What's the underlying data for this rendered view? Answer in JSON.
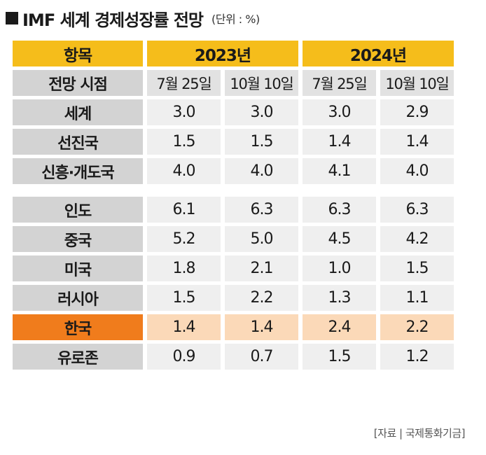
{
  "title": "IMF 세계 경제성장률 전망",
  "unit": "(단위 : %)",
  "header": {
    "item_label": "항목",
    "years": [
      "2023년",
      "2024년"
    ]
  },
  "subheader": {
    "label": "전망 시점",
    "dates": [
      "7월 25일",
      "10월 10일",
      "7월 25일",
      "10월 10일"
    ]
  },
  "rows": [
    {
      "label": "세계",
      "values": [
        "3.0",
        "3.0",
        "3.0",
        "2.9"
      ]
    },
    {
      "label": "선진국",
      "values": [
        "1.5",
        "1.5",
        "1.4",
        "1.4"
      ]
    },
    {
      "label": "신흥·개도국",
      "values": [
        "4.0",
        "4.0",
        "4.1",
        "4.0"
      ]
    },
    {
      "label": "인도",
      "values": [
        "6.1",
        "6.3",
        "6.3",
        "6.3"
      ]
    },
    {
      "label": "중국",
      "values": [
        "5.2",
        "5.0",
        "4.5",
        "4.2"
      ]
    },
    {
      "label": "미국",
      "values": [
        "1.8",
        "2.1",
        "1.0",
        "1.5"
      ]
    },
    {
      "label": "러시아",
      "values": [
        "1.5",
        "2.2",
        "1.3",
        "1.1"
      ]
    },
    {
      "label": "한국",
      "values": [
        "1.4",
        "1.4",
        "2.4",
        "2.2"
      ]
    },
    {
      "label": "유로존",
      "values": [
        "0.9",
        "0.7",
        "1.5",
        "1.2"
      ]
    }
  ],
  "colors": {
    "header": "#f5bd1b",
    "highlight_label": "#f07c1c",
    "highlight_value": "#fbd9b8",
    "label_gray": "#d3d3d3",
    "value_gray": "#efefef"
  },
  "source": "[자료 | 국제통화기금]"
}
